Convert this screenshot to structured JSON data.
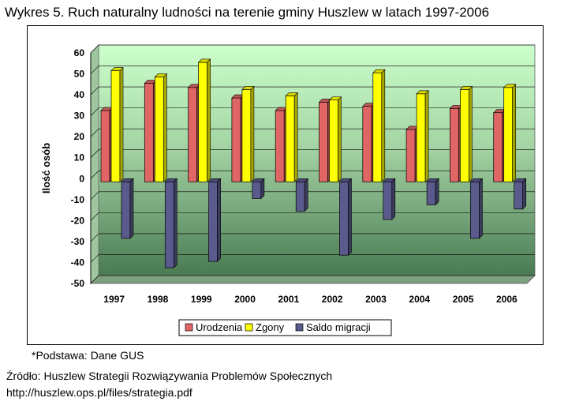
{
  "title": "Wykres 5. Ruch naturalny ludności na terenie gminy Huszlew w latach 1997-2006",
  "footnote": "*Podstawa: Dane GUS",
  "source_line1": "Źródło: Huszlew Strategii Rozwiązywania Problemów Społecznych",
  "source_line2": "http://huszlew.ops.pl/files/strategia.pdf",
  "chart_data": {
    "type": "bar",
    "title": "Wykres 5. Ruch naturalny ludności na terenie gminy Huszlew w latach 1997-2006",
    "xlabel": "",
    "ylabel": "Ilość osób",
    "ylim": [
      -50,
      60
    ],
    "yticks": [
      60,
      50,
      40,
      30,
      20,
      10,
      0,
      -10,
      -20,
      -30,
      -40,
      -50
    ],
    "categories": [
      "1997",
      "1998",
      "1999",
      "2000",
      "2001",
      "2002",
      "2003",
      "2004",
      "2005",
      "2006"
    ],
    "series": [
      {
        "name": "Urodzenia",
        "color": "#e06666",
        "values": [
          34,
          47,
          45,
          40,
          34,
          38,
          36,
          25,
          35,
          33
        ]
      },
      {
        "name": "Zgony",
        "color": "#ffff00",
        "values": [
          53,
          50,
          57,
          44,
          41,
          39,
          52,
          42,
          44,
          45
        ]
      },
      {
        "name": "Saldo migracji",
        "color": "#5a5a8c",
        "values": [
          -27,
          -41,
          -38,
          -8,
          -14,
          -35,
          -18,
          -11,
          -27,
          -13
        ]
      }
    ],
    "legend_position": "bottom",
    "grid": true,
    "background": "green-gradient"
  }
}
